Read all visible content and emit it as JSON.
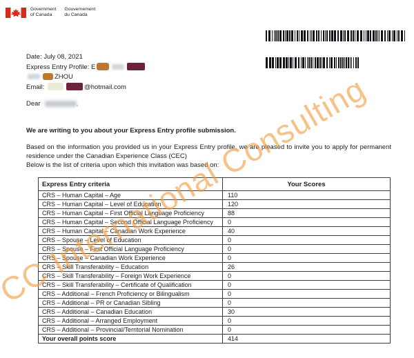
{
  "logo": {
    "gov_en": [
      "Government",
      "of Canada"
    ],
    "gov_fr": [
      "Gouvernement",
      "du Canada"
    ]
  },
  "letter": {
    "date_line": "Date: July 08, 2021",
    "profile_label": "Express Entry Profile: E",
    "name_visible": "ZHOU",
    "email_label": "Email:",
    "email_visible": "@hotmail.com",
    "salutation": "Dear",
    "salutation_suffix": ",",
    "heading_bold": "We are writing to you about your Express Entry profile submission.",
    "body_paragraph": "Based on the information you provided us in your Express Entry profile, we are pleased to invite you to apply for permanent residence under the Canadian Experience Class (CEC)",
    "body_line": "Below is the list of criteria upon which this invitation was based on:"
  },
  "watermark_text": "CC International Consulting",
  "table": {
    "col_headers": [
      "Express Entry criteria",
      "Your Scores"
    ],
    "rows": [
      [
        "CRS – Human Capital – Age",
        "110"
      ],
      [
        "CRS – Human Capital – Level of Education",
        "120"
      ],
      [
        "CRS – Human Capital – First Official Language Proficiency",
        "88"
      ],
      [
        "CRS – Human Capital – Second Official Language Proficiency",
        "0"
      ],
      [
        "CRS – Human Capital – Canadian Work Experience",
        "40"
      ],
      [
        "CRS – Spouse – Level of Education",
        "0"
      ],
      [
        "CRS – Spouse – First Official Language Proficiency",
        "0"
      ],
      [
        "CRS – Spouse – Canadian Work Experience",
        "0"
      ],
      [
        "CRS – Skill Transferability – Education",
        "26"
      ],
      [
        "CRS – Skill Transferability – Foreign Work Experience",
        "0"
      ],
      [
        "CRS – Skill Transferability – Certificate of Qualification",
        "0"
      ],
      [
        "CRS – Additional – French Proficiency or Bilingualism",
        "0"
      ],
      [
        "CRS – Additional – PR or Canadian Sibling",
        "0"
      ],
      [
        "CRS – Additional – Canadian Education",
        "30"
      ],
      [
        "CRS – Additional – Arranged Employment",
        "0"
      ],
      [
        "CRS – Additional – Provincial/Territorial Nomination",
        "0"
      ]
    ],
    "total_row": [
      "Your overall points score",
      "414"
    ]
  },
  "colors": {
    "flag_red": "#d52b1e",
    "watermark_orange": "#f29a3c",
    "redaction_orange": "#bf772e",
    "redaction_maroon": "#6b2338",
    "redaction_pale": "#ecead9"
  }
}
